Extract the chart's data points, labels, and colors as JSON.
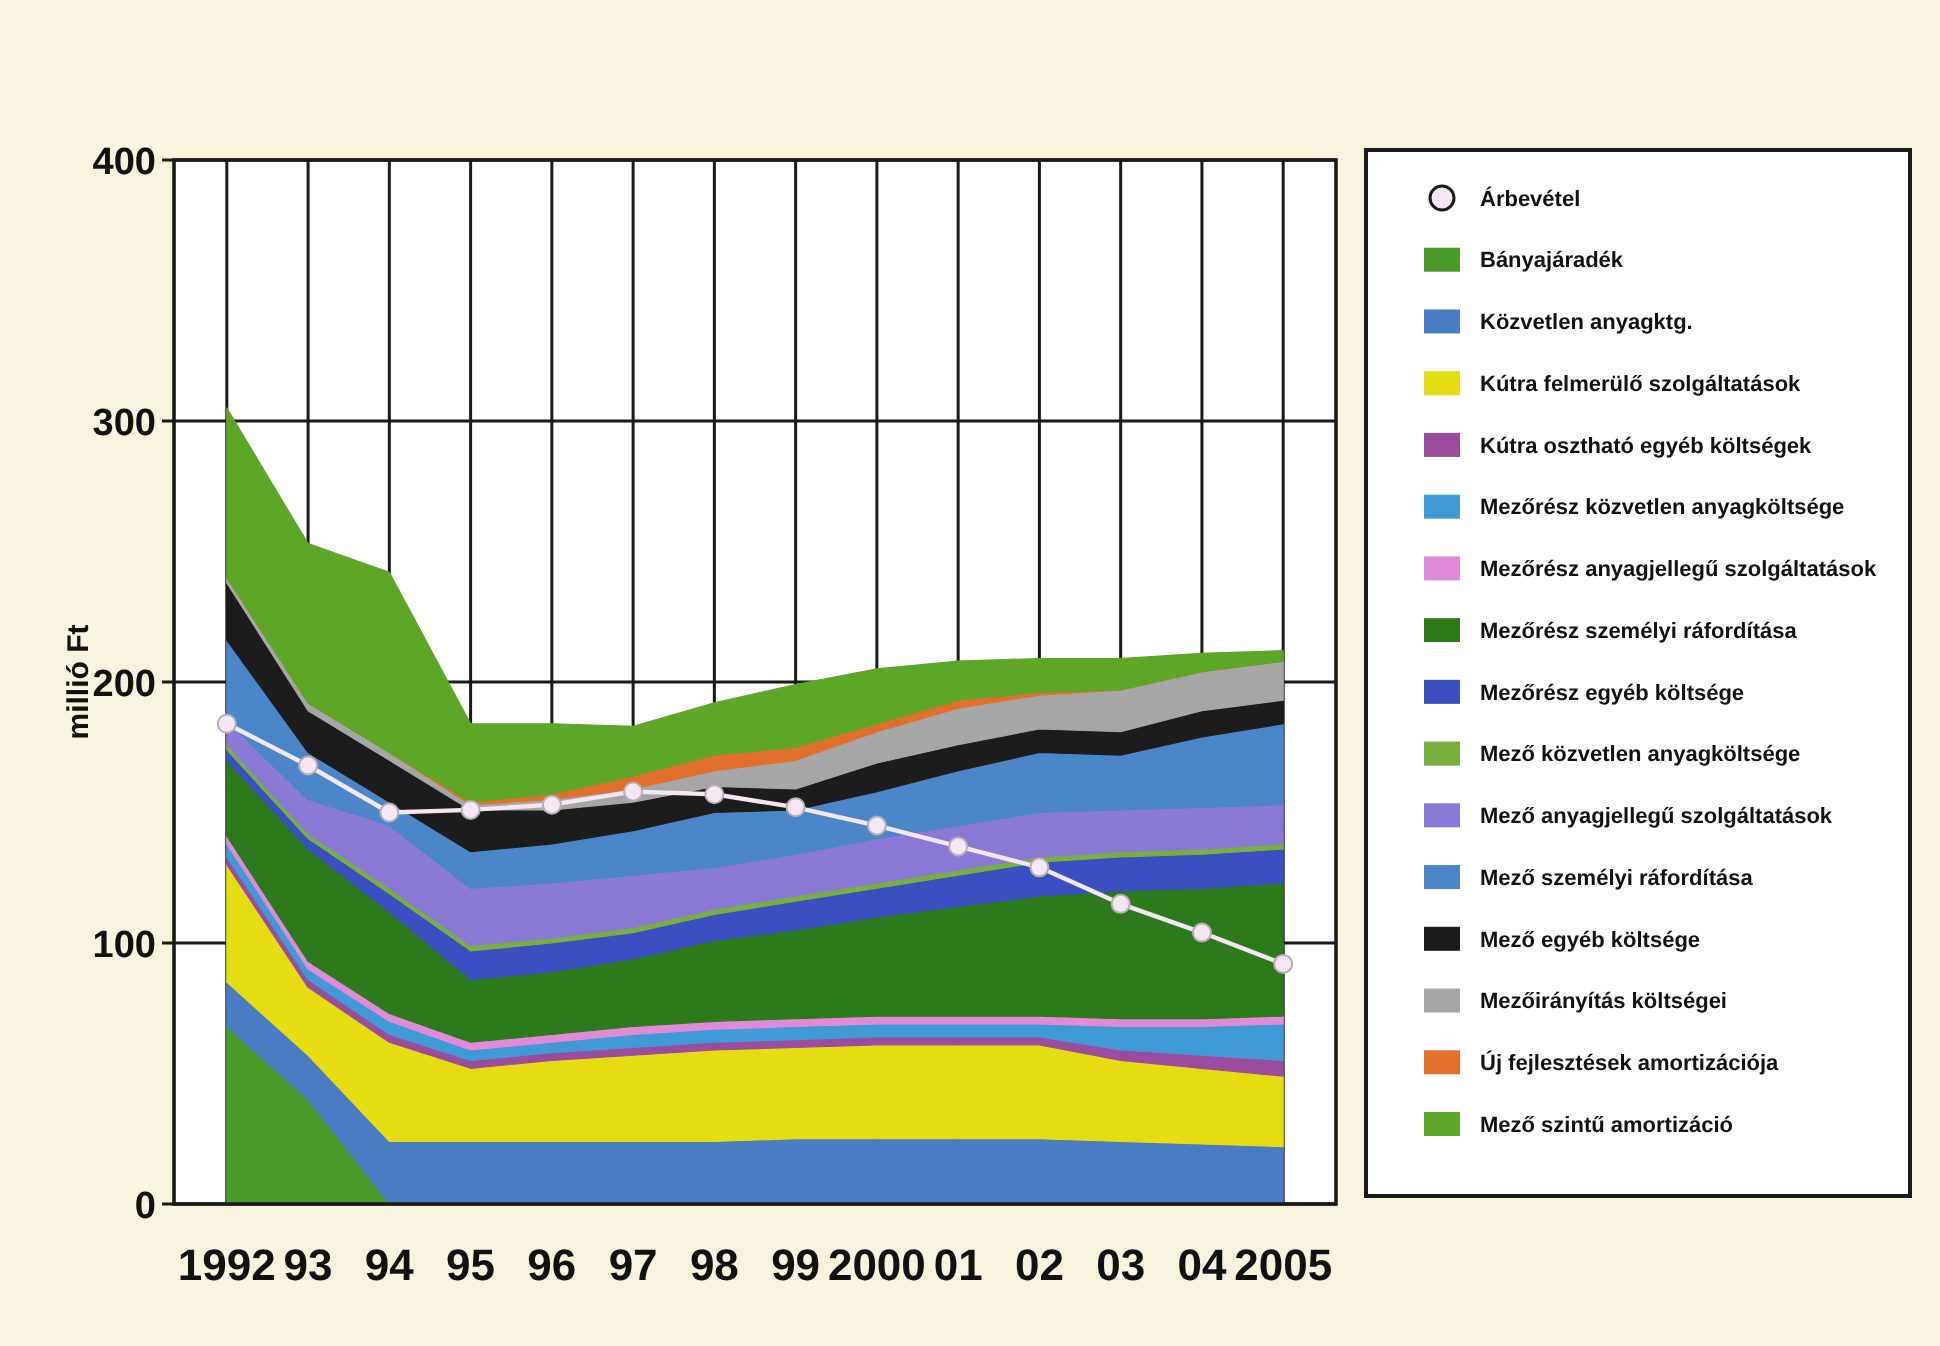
{
  "chart_data": {
    "type": "area",
    "stacked": true,
    "ylabel": "millió Ft",
    "ylim": [
      0,
      400
    ],
    "yticks": [
      0,
      100,
      200,
      300,
      400
    ],
    "grid": true,
    "legend": "right",
    "categories": [
      "1992",
      "93",
      "94",
      "95",
      "96",
      "97",
      "98",
      "99",
      "2000",
      "01",
      "02",
      "03",
      "04",
      "2005"
    ],
    "series": [
      {
        "name": "Árbevétel",
        "type": "line",
        "marker": "circle",
        "color": "#f4e6f2",
        "values": [
          184,
          168,
          150,
          151,
          153,
          158,
          157,
          152,
          145,
          137,
          129,
          115,
          104,
          92
        ]
      },
      {
        "name": "Bányajáradék",
        "color": "#4c9a2a",
        "values": [
          68,
          40,
          0,
          0,
          0,
          0,
          0,
          0,
          0,
          0,
          0,
          0,
          0,
          0
        ]
      },
      {
        "name": "Közvetlen anyagktg.",
        "color": "#4a7cc4",
        "values": [
          17,
          17,
          24,
          24,
          24,
          24,
          24,
          25,
          25,
          25,
          25,
          24,
          23,
          22
        ]
      },
      {
        "name": "Kútra felmerülő szolgáltatások",
        "color": "#e6dc12",
        "values": [
          45,
          26,
          38,
          28,
          31,
          33,
          35,
          35,
          36,
          36,
          36,
          31,
          29,
          27
        ]
      },
      {
        "name": "Kútra osztható egyéb költségek",
        "color": "#9c4c9c",
        "values": [
          3,
          3,
          3,
          3,
          3,
          3,
          3,
          3,
          3,
          3,
          3,
          4,
          5,
          6
        ]
      },
      {
        "name": "Mezőrész közvetlen anyagköltsége",
        "color": "#3f9ad6",
        "values": [
          5,
          4,
          5,
          4,
          4,
          5,
          5,
          5,
          5,
          5,
          5,
          9,
          11,
          14
        ]
      },
      {
        "name": "Mezőrész anyagjellegű szolgáltatások",
        "color": "#e08ad8",
        "values": [
          3,
          3,
          3,
          3,
          3,
          3,
          3,
          3,
          3,
          3,
          3,
          3,
          3,
          3
        ]
      },
      {
        "name": "Mezőrész személyi ráfordítása",
        "color": "#2d7a1c",
        "values": [
          29,
          43,
          39,
          24,
          24,
          26,
          31,
          34,
          38,
          42,
          46,
          49,
          50,
          51
        ]
      },
      {
        "name": "Mezőrész egyéb költsége",
        "color": "#3a4fc0",
        "values": [
          4,
          4,
          7,
          11,
          11,
          10,
          10,
          11,
          11,
          12,
          13,
          13,
          13,
          13
        ]
      },
      {
        "name": "Mező közvetlen anyagköltsége",
        "color": "#78b040",
        "values": [
          2,
          2,
          2,
          2,
          2,
          2,
          2,
          2,
          2,
          2,
          2,
          2,
          2,
          2
        ]
      },
      {
        "name": "Mező anyagjellegű szolgáltatások",
        "color": "#8a7ad6",
        "values": [
          9,
          13,
          24,
          22,
          21,
          20,
          16,
          16,
          17,
          17,
          17,
          16,
          16,
          15
        ]
      },
      {
        "name": "Mező személyi ráfordítása",
        "color": "#4a86c8",
        "values": [
          31,
          18,
          9,
          14,
          15,
          17,
          21,
          17,
          18,
          21,
          23,
          21,
          27,
          31
        ]
      },
      {
        "name": "Mező egyéb költsége",
        "color": "#1c1c1c",
        "values": [
          22,
          16,
          16,
          16,
          13,
          11,
          10,
          8,
          11,
          10,
          9,
          9,
          10,
          9
        ]
      },
      {
        "name": "Mezőirányítás költségei",
        "color": "#a6a6a6",
        "values": [
          2,
          3,
          3,
          2,
          4,
          5,
          6,
          11,
          12,
          14,
          13,
          16,
          15,
          15
        ]
      },
      {
        "name": "Új fejlesztések amortizációja",
        "color": "#e0702c",
        "values": [
          0,
          0,
          0,
          1,
          2,
          5,
          6,
          5,
          3,
          3,
          1,
          0,
          0,
          0
        ]
      },
      {
        "name": "Mező szintű amortizáció",
        "color": "#5ea628",
        "values": [
          65,
          61,
          69,
          30,
          27,
          19,
          20,
          24,
          21,
          15,
          13,
          12,
          7,
          4
        ]
      }
    ]
  }
}
